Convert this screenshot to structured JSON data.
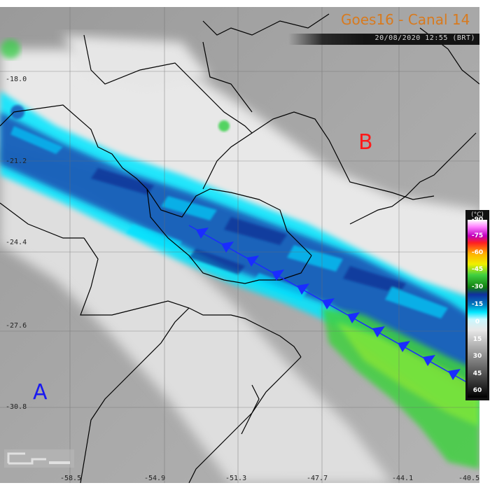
{
  "header": {
    "title": "Goes16 - Canal 14",
    "timestamp": "20/08/2020 12:55 (BRT)"
  },
  "grid": {
    "latitudes": [
      "-18.0",
      "-21.2",
      "-24.4",
      "-27.6",
      "-30.8"
    ],
    "longitudes": [
      "-58.5",
      "-54.9",
      "-51.3",
      "-47.7",
      "-44.1",
      "-40.5"
    ]
  },
  "markers": {
    "A": {
      "label": "A",
      "color": "#1a1af0"
    },
    "B": {
      "label": "B",
      "color": "#ff1a1a"
    }
  },
  "colorscale": {
    "unit": "(°C)",
    "labels": [
      "-90",
      "-75",
      "-60",
      "-45",
      "-30",
      "-15",
      "0",
      "15",
      "30",
      "45",
      "60"
    ]
  },
  "colors": {
    "front": "#1a2cff",
    "title": "#d87a1e",
    "cloud_cold": "#00e8ff",
    "cloud_colder": "#1840b0",
    "cloud_coldest": "#3ad040"
  }
}
